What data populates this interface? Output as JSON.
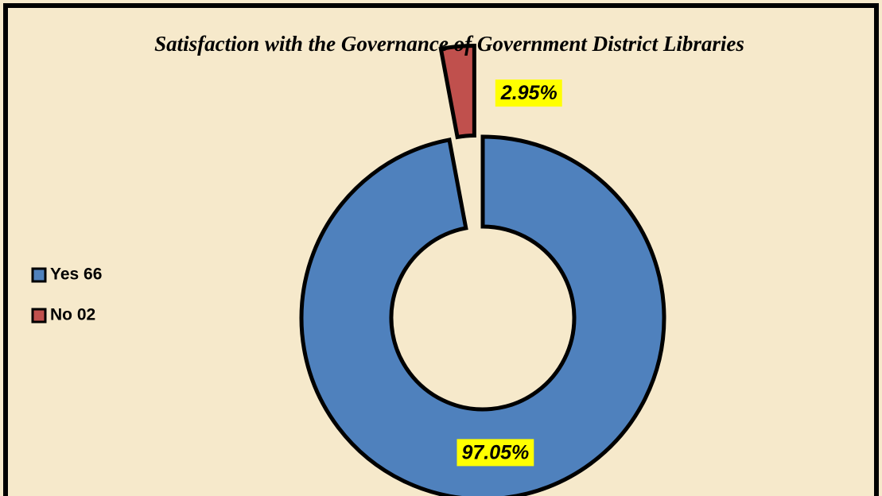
{
  "chart_data": {
    "type": "donut",
    "title": "Satisfaction with the Governance of Government District Libraries",
    "categories": [
      "Yes 66",
      "No 02"
    ],
    "values": [
      97.05,
      2.95
    ],
    "value_labels": [
      "97.05%",
      "2.95%"
    ],
    "colors": [
      "#4f81bd",
      "#c0504d"
    ],
    "legend": "left"
  }
}
